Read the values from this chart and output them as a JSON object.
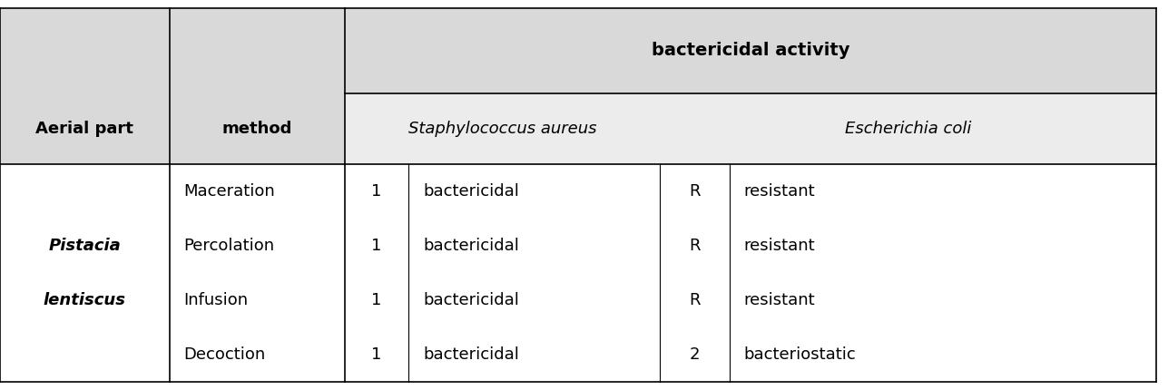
{
  "fig_width": 12.87,
  "fig_height": 4.3,
  "bg_color": "#ffffff",
  "header_bg": "#d9d9d9",
  "header_bg2": "#e8e8e8",
  "col1_header": "Aerial part",
  "col2_header": "method",
  "bact_activity_header": "bactericidal activity",
  "staph_header": "Staphylococcus aureus",
  "esch_header": "Escherichia coli",
  "aerial_part_label1": "Pistacia",
  "aerial_part_label2": "lentiscus",
  "rows": [
    {
      "method": "Maceration",
      "sa_val": "1",
      "sa_desc": "bactericidal",
      "ec_val": "R",
      "ec_desc": "resistant"
    },
    {
      "method": "Percolation",
      "sa_val": "1",
      "sa_desc": "bactericidal",
      "ec_val": "R",
      "ec_desc": "resistant"
    },
    {
      "method": "Infusion",
      "sa_val": "1",
      "sa_desc": "bactericidal",
      "ec_val": "R",
      "ec_desc": "resistant"
    },
    {
      "method": "Decoction",
      "sa_val": "1",
      "sa_desc": "bactericidal",
      "ec_val": "2",
      "ec_desc": "bacteriostatic"
    }
  ],
  "border_color": "#000000",
  "text_color": "#000000"
}
